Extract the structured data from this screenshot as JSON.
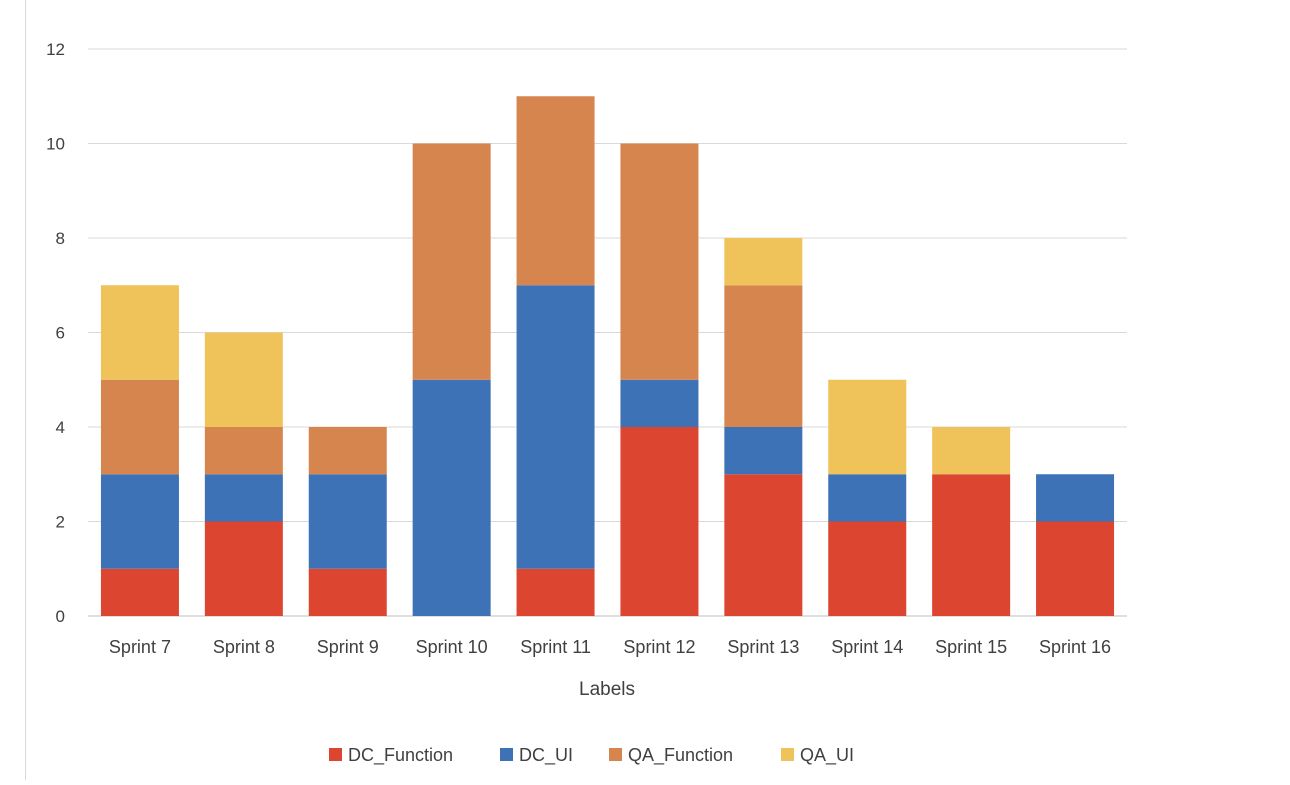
{
  "chart_data": {
    "type": "bar",
    "stacked": true,
    "title": "",
    "xlabel": "Labels",
    "ylabel": "",
    "ylim": [
      0,
      12
    ],
    "yticks": [
      "0",
      "2",
      "4",
      "6",
      "8",
      "10",
      "12"
    ],
    "grid": true,
    "legend_position": "bottom",
    "categories": [
      "Sprint 7",
      "Sprint 8",
      "Sprint 9",
      "Sprint 10",
      "Sprint 11",
      "Sprint 12",
      "Sprint 13",
      "Sprint 14",
      "Sprint 15",
      "Sprint 16"
    ],
    "series": [
      {
        "name": "DC_Function",
        "color": "#dc4530",
        "values": [
          1,
          2,
          1,
          0,
          1,
          4,
          3,
          2,
          3,
          2
        ]
      },
      {
        "name": "DC_UI",
        "color": "#3e72b7",
        "values": [
          2,
          1,
          2,
          5,
          6,
          1,
          1,
          1,
          0,
          1
        ]
      },
      {
        "name": "QA_Function",
        "color": "#d5854d",
        "values": [
          2,
          1,
          1,
          5,
          4,
          5,
          3,
          0,
          0,
          0
        ]
      },
      {
        "name": "QA_UI",
        "color": "#efc25a",
        "values": [
          2,
          2,
          0,
          0,
          0,
          0,
          1,
          2,
          1,
          0
        ]
      }
    ]
  }
}
